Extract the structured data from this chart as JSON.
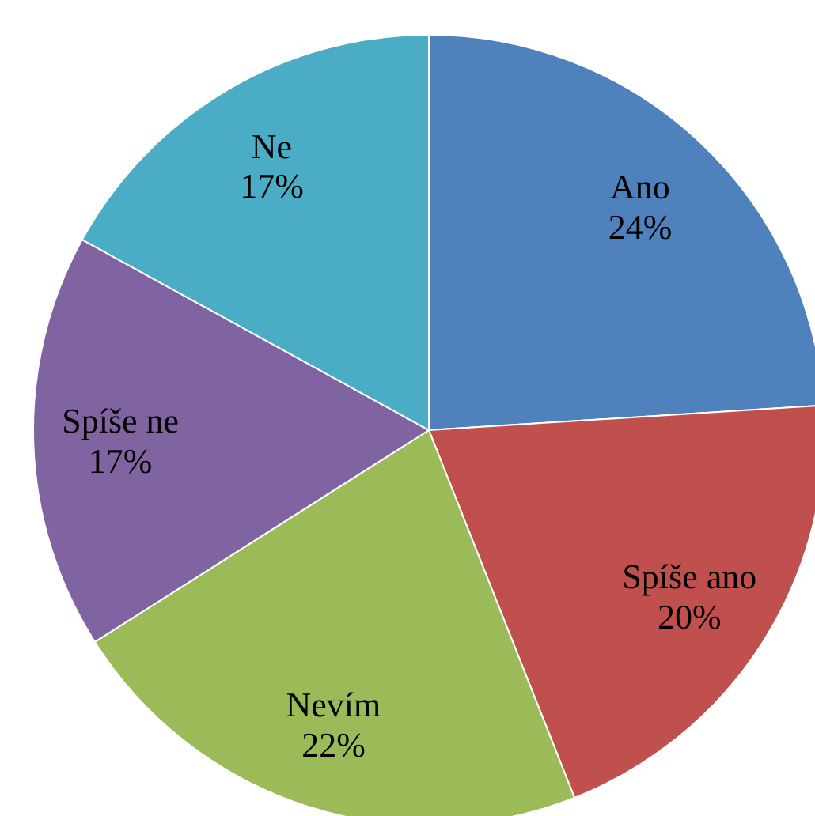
{
  "chart_data": {
    "type": "pie",
    "categories": [
      "Ano",
      "Spíše ano",
      "Nevím",
      "Spíše ne",
      "Ne"
    ],
    "values": [
      24,
      20,
      22,
      17,
      17
    ],
    "colors": [
      "#4f81bd",
      "#c0504d",
      "#9bbb59",
      "#8064a2",
      "#4bacc6"
    ],
    "value_labels": [
      "24%",
      "20%",
      "22%",
      "17%",
      "17%"
    ],
    "legend": false
  }
}
